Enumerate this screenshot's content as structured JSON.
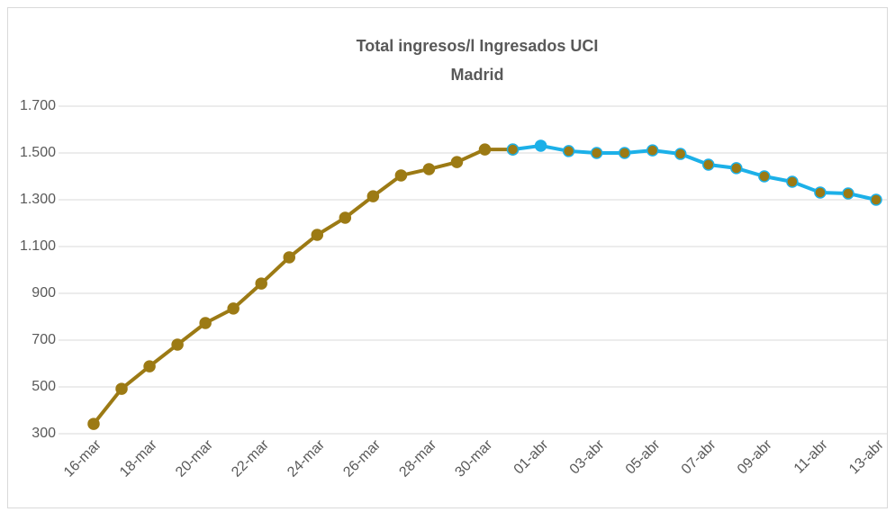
{
  "chart_data": {
    "type": "line",
    "title": [
      "Total ingresos/l Ingresados UCI",
      "Madrid"
    ],
    "categories": [
      "16-mar",
      null,
      "18-mar",
      null,
      "20-mar",
      null,
      "22-mar",
      null,
      "24-mar",
      null,
      "26-mar",
      null,
      "28-mar",
      null,
      "30-mar",
      null,
      "01-abr",
      null,
      "03-abr",
      null,
      "05-abr",
      null,
      "07-abr",
      null,
      "09-abr",
      null,
      "11-abr",
      null,
      "13-abr"
    ],
    "series": [
      {
        "color": "#9c7a14",
        "marker_color": "#9c7a14",
        "values": [
          342,
          492,
          588,
          681,
          773,
          835,
          942,
          1054,
          1150,
          1223,
          1315,
          1404,
          1431,
          1461,
          1515,
          1515,
          null,
          null,
          null,
          null,
          null,
          null,
          null,
          null,
          null,
          null,
          null,
          null,
          null
        ]
      },
      {
        "color": "#1cb0e8",
        "marker_color": "#9c7a14",
        "values": [
          null,
          null,
          null,
          null,
          null,
          null,
          null,
          null,
          null,
          null,
          null,
          null,
          null,
          null,
          null,
          1515,
          1531,
          1508,
          1500,
          1500,
          1511,
          1496,
          1450,
          1435,
          1400,
          1377,
          1331,
          1327,
          1300
        ]
      }
    ],
    "ylim": [
      300,
      1700
    ],
    "yticks": [
      300,
      500,
      700,
      900,
      {
        "value": 1100,
        "label": "1.100"
      },
      {
        "value": 1300,
        "label": "1.300"
      },
      {
        "value": 1500,
        "label": "1.500"
      },
      {
        "value": 1700,
        "label": "1.700"
      }
    ],
    "grid": true
  }
}
